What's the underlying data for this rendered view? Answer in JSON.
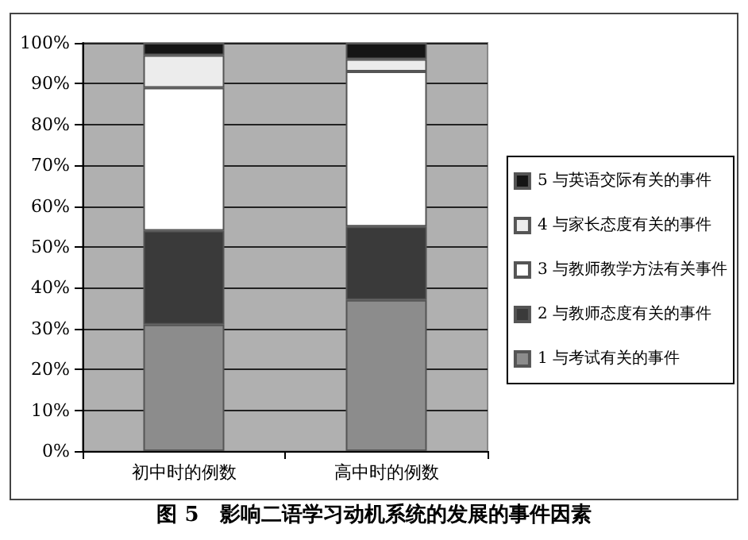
{
  "chart_data": {
    "type": "bar",
    "title": "图 5　影响二语学习动机系统的发展的事件因素",
    "stacked": true,
    "categories": [
      "初中时的例数",
      "高中时的例数"
    ],
    "series": [
      {
        "name": "1 与考试有关的事件",
        "color": "#8c8c8c",
        "values": [
          31,
          37
        ]
      },
      {
        "name": "2 与教师态度有关的事件",
        "color": "#3a3a3a",
        "values": [
          23,
          18
        ]
      },
      {
        "name": "3 与教师教学方法有关事件",
        "color": "#ffffff",
        "values": [
          35,
          38
        ]
      },
      {
        "name": "4 与家长态度有关的事件",
        "color": "#ececec",
        "values": [
          8,
          3
        ]
      },
      {
        "name": "5 与英语交际有关的事件",
        "color": "#151515",
        "values": [
          3,
          4
        ]
      }
    ],
    "ylim": [
      0,
      100
    ],
    "yticks": [
      {
        "value": 0,
        "label": "0%"
      },
      {
        "value": 10,
        "label": "10%"
      },
      {
        "value": 20,
        "label": "20%"
      },
      {
        "value": 30,
        "label": "30%"
      },
      {
        "value": 40,
        "label": "40%"
      },
      {
        "value": 50,
        "label": "50%"
      },
      {
        "value": 60,
        "label": "60%"
      },
      {
        "value": 70,
        "label": "70%"
      },
      {
        "value": 80,
        "label": "80%"
      },
      {
        "value": 90,
        "label": "90%"
      },
      {
        "value": 100,
        "label": "100%"
      }
    ],
    "grid": "y",
    "legend": "right"
  }
}
